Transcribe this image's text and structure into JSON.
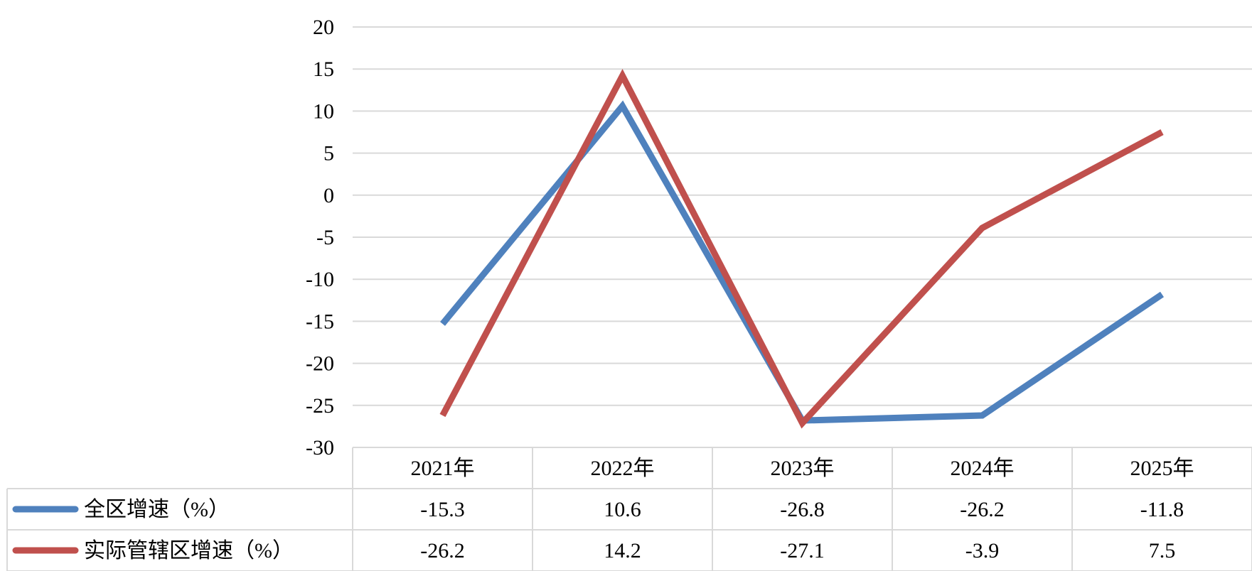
{
  "chart_data": {
    "type": "line",
    "categories": [
      "2021年",
      "2022年",
      "2023年",
      "2024年",
      "2025年"
    ],
    "series": [
      {
        "name": "全区增速（%）",
        "values": [
          -15.3,
          10.6,
          -26.8,
          -26.2,
          -11.8
        ],
        "color": "#4F81BD"
      },
      {
        "name": "实际管辖区增速（%）",
        "values": [
          -26.2,
          14.2,
          -27.1,
          -3.9,
          7.5
        ],
        "color": "#C0504D"
      }
    ],
    "ylim": [
      -30,
      20
    ],
    "yticks": [
      20,
      15,
      10,
      5,
      0,
      -5,
      -10,
      -15,
      -20,
      -25,
      -30
    ],
    "grid": true,
    "legend": "data-table",
    "data_table": {
      "rows": [
        {
          "label": "全区增速（%）",
          "cells": [
            "-15.3",
            "10.6",
            "-26.8",
            "-26.2",
            "-11.8"
          ]
        },
        {
          "label": "实际管辖区增速（%）",
          "cells": [
            "-26.2",
            "14.2",
            "-27.1",
            "-3.9",
            "7.5"
          ]
        }
      ]
    },
    "gridline_color": "#D9D9D9"
  }
}
